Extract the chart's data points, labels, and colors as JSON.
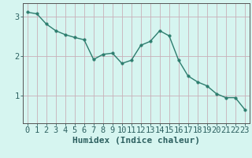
{
  "x": [
    0,
    1,
    2,
    3,
    4,
    5,
    6,
    7,
    8,
    9,
    10,
    11,
    12,
    13,
    14,
    15,
    16,
    17,
    18,
    19,
    20,
    21,
    22,
    23
  ],
  "y": [
    3.12,
    3.08,
    2.82,
    2.65,
    2.55,
    2.48,
    2.42,
    1.92,
    2.05,
    2.08,
    1.82,
    1.9,
    2.28,
    2.38,
    2.65,
    2.52,
    1.9,
    1.5,
    1.35,
    1.25,
    1.05,
    0.95,
    0.95,
    0.65
  ],
  "line_color": "#2d7d6e",
  "marker_color": "#2d7d6e",
  "bg_color": "#d6f5f0",
  "grid_color": "#c8b0b8",
  "axis_color": "#555555",
  "xlabel": "Humidex (Indice chaleur)",
  "yticks": [
    1,
    2,
    3
  ],
  "ylim": [
    0.3,
    3.35
  ],
  "xlim": [
    -0.5,
    23.5
  ],
  "font_color": "#2d6060",
  "xlabel_fontsize": 8,
  "tick_fontsize": 7.5,
  "line_width": 1.0,
  "marker_size": 2.5
}
